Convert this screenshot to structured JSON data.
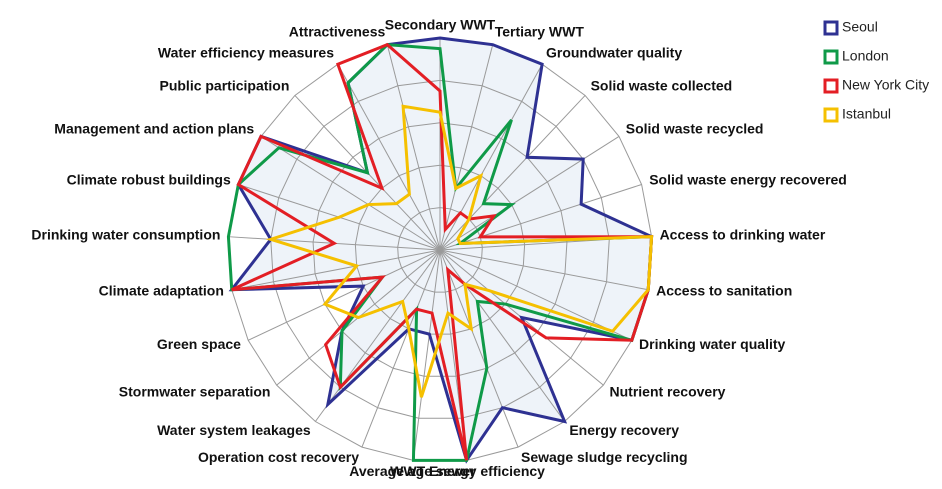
{
  "chart_data": {
    "type": "radar",
    "categories": [
      "Secondary WWT",
      "Tertiary WWT",
      "Groundwater quality",
      "Solid waste collected",
      "Solid waste recycled",
      "Solid waste energy recovered",
      "Access to drinking water",
      "Access to sanitation",
      "Drinking water quality",
      "Nutrient recovery",
      "Energy recovery",
      "Sewage sludge recycling",
      "WWT Energy efficiency",
      "Average age sewer",
      "Operation cost recovery",
      "Water system leakages",
      "Stormwater separation",
      "Green space",
      "Climate adaptation",
      "Drinking water consumption",
      "Climate robust buildings",
      "Management and action plans",
      "Public participation",
      "Water efficiency measures",
      "Attractiveness"
    ],
    "ylim": [
      0,
      10
    ],
    "rticks": [
      2,
      4,
      6,
      8,
      10
    ],
    "grid": true,
    "legend": "top-right",
    "fill_series": 0,
    "series": [
      {
        "name": "Seoul",
        "color": "#2e3192",
        "values": [
          10,
          10,
          10,
          6,
          8,
          7,
          10,
          10,
          10,
          5,
          10,
          8,
          10,
          4,
          4,
          9,
          6,
          4,
          10,
          8,
          10,
          10,
          5,
          9,
          10
        ]
      },
      {
        "name": "London",
        "color": "#0f9a48",
        "values": [
          9.5,
          3,
          7,
          3,
          4,
          1,
          10,
          10,
          10,
          4,
          3,
          6,
          10,
          10,
          3,
          8,
          6,
          3,
          10,
          10,
          10,
          9,
          5,
          9,
          10
        ]
      },
      {
        "name": "New York City",
        "color": "#e31e24",
        "values": [
          7.5,
          1,
          2,
          2,
          3,
          2,
          10,
          10,
          10,
          6.5,
          2,
          1,
          10,
          3,
          3,
          8,
          7,
          3,
          10,
          5,
          10,
          10,
          4,
          10,
          10
        ]
      },
      {
        "name": "Istanbul",
        "color": "#f5c000",
        "values": [
          6.5,
          3,
          4,
          2,
          1,
          1,
          10,
          10,
          9,
          3,
          2,
          4,
          3,
          7,
          4,
          3,
          5,
          6,
          4,
          8,
          5,
          4,
          3,
          3,
          7
        ]
      }
    ]
  }
}
